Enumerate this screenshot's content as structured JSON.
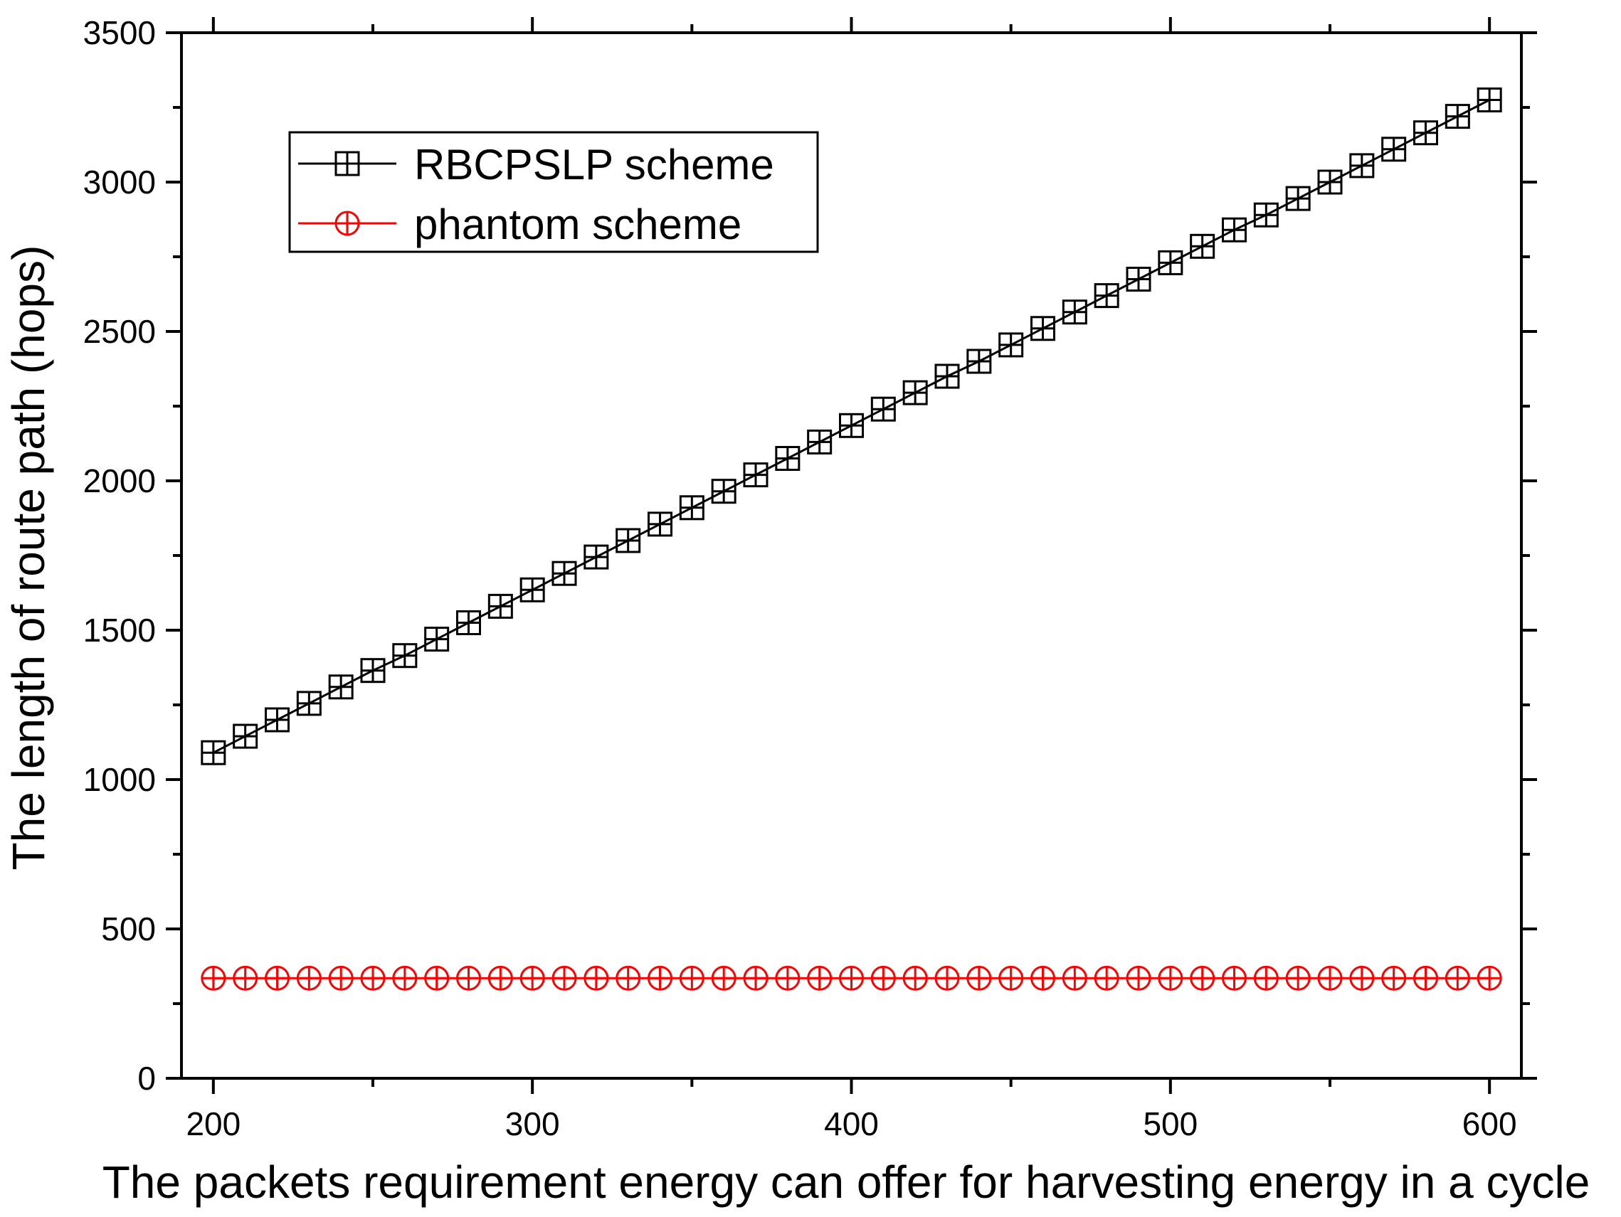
{
  "chart_data": {
    "type": "line",
    "title": "",
    "xlabel": "The packets requirement energy can offer for harvesting energy in a cycle",
    "ylabel": "The length of route  path (hops)",
    "xlim": [
      190,
      610
    ],
    "ylim": [
      0,
      3500
    ],
    "xticks": [
      200,
      300,
      400,
      500,
      600
    ],
    "yticks": [
      0,
      500,
      1000,
      1500,
      2000,
      2500,
      3000,
      3500
    ],
    "xtick_labels": [
      "200",
      "300",
      "400",
      "500",
      "600"
    ],
    "ytick_labels": [
      "0",
      "500",
      "1000",
      "1500",
      "2000",
      "2500",
      "3000",
      "3500"
    ],
    "grid": false,
    "legend_position": "top-left",
    "x": [
      200,
      210,
      220,
      230,
      240,
      250,
      260,
      270,
      280,
      290,
      300,
      310,
      320,
      330,
      340,
      350,
      360,
      370,
      380,
      390,
      400,
      410,
      420,
      430,
      440,
      450,
      460,
      470,
      480,
      490,
      500,
      510,
      520,
      530,
      540,
      550,
      560,
      570,
      580,
      590,
      600
    ],
    "series": [
      {
        "name": "RBCPSLP scheme",
        "color": "#000000",
        "marker": "square-plus",
        "values": [
          1090,
          1145,
          1200,
          1255,
          1310,
          1365,
          1415,
          1470,
          1525,
          1580,
          1635,
          1690,
          1745,
          1800,
          1855,
          1910,
          1965,
          2020,
          2075,
          2130,
          2185,
          2240,
          2295,
          2350,
          2400,
          2455,
          2510,
          2565,
          2620,
          2675,
          2730,
          2785,
          2840,
          2890,
          2945,
          3000,
          3055,
          3110,
          3165,
          3220,
          3275
        ]
      },
      {
        "name": "phantom scheme",
        "color": "#ff0000",
        "marker": "circle-plus",
        "values": [
          335,
          335,
          335,
          335,
          335,
          335,
          335,
          335,
          335,
          335,
          335,
          335,
          335,
          335,
          335,
          335,
          335,
          335,
          335,
          335,
          335,
          335,
          335,
          335,
          335,
          335,
          335,
          335,
          335,
          335,
          335,
          335,
          335,
          335,
          335,
          335,
          335,
          335,
          335,
          335,
          335
        ]
      }
    ]
  }
}
